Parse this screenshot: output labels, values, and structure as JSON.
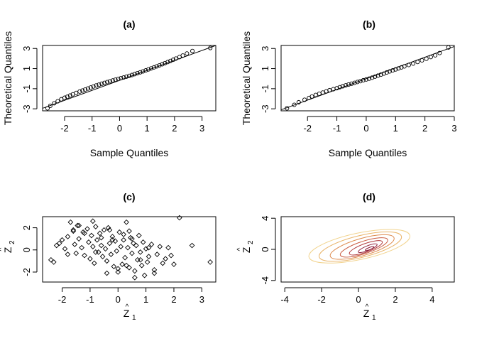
{
  "colors": {
    "points": "#000000",
    "contour_scale": [
      "#f2d48f",
      "#e9b46a",
      "#dd8a4d",
      "#c95a3f",
      "#b03a3b",
      "#8f1f3a"
    ]
  },
  "chart_data": [
    {
      "id": "a",
      "type": "scatter",
      "title": "(a)",
      "xlabel": "Sample Quantiles",
      "ylabel": "Theoretical Quantiles",
      "xlim": [
        -2.8,
        3.5
      ],
      "ylim": [
        -3.2,
        3.3
      ],
      "xticks": [
        -2,
        -1,
        0,
        1,
        2,
        3
      ],
      "xticklabels": [
        "-2",
        "-1",
        "0",
        "1",
        "2",
        "3"
      ],
      "yticks": [
        -3,
        -1,
        1,
        3
      ],
      "yticklabels": [
        "-3",
        "-1",
        "1",
        "3"
      ],
      "marker": "circle-open",
      "reference_line": {
        "x": [
          -2.8,
          3.5
        ],
        "y": [
          -2.95,
          3.3
        ]
      },
      "points": {
        "x": [
          -2.62,
          -2.52,
          -2.38,
          -2.25,
          -2.12,
          -2.0,
          -1.9,
          -1.8,
          -1.7,
          -1.58,
          -1.45,
          -1.35,
          -1.25,
          -1.15,
          -1.05,
          -0.95,
          -0.85,
          -0.75,
          -0.65,
          -0.55,
          -0.45,
          -0.35,
          -0.25,
          -0.15,
          -0.05,
          0.05,
          0.15,
          0.25,
          0.35,
          0.45,
          0.55,
          0.65,
          0.75,
          0.85,
          0.95,
          1.05,
          1.15,
          1.25,
          1.35,
          1.45,
          1.55,
          1.65,
          1.75,
          1.85,
          1.95,
          2.05,
          2.18,
          2.3,
          2.45,
          2.65,
          3.3
        ],
        "y": [
          -2.95,
          -2.7,
          -2.45,
          -2.25,
          -2.05,
          -1.9,
          -1.8,
          -1.68,
          -1.56,
          -1.42,
          -1.28,
          -1.18,
          -1.08,
          -0.98,
          -0.88,
          -0.78,
          -0.68,
          -0.6,
          -0.5,
          -0.42,
          -0.34,
          -0.26,
          -0.18,
          -0.1,
          -0.03,
          0.05,
          0.12,
          0.2,
          0.28,
          0.36,
          0.45,
          0.54,
          0.63,
          0.72,
          0.82,
          0.92,
          1.02,
          1.12,
          1.22,
          1.32,
          1.43,
          1.54,
          1.65,
          1.76,
          1.88,
          2.0,
          2.15,
          2.3,
          2.5,
          2.75,
          3.05
        ]
      }
    },
    {
      "id": "b",
      "type": "scatter",
      "title": "(b)",
      "xlabel": "Sample Quantiles",
      "ylabel": "Theoretical Quantiles",
      "xlim": [
        -2.9,
        3.0
      ],
      "ylim": [
        -3.2,
        3.3
      ],
      "xticks": [
        -2,
        -1,
        0,
        1,
        2,
        3
      ],
      "xticklabels": [
        "-2",
        "-1",
        "0",
        "1",
        "2",
        "3"
      ],
      "yticks": [
        -3,
        -1,
        1,
        3
      ],
      "yticklabels": [
        "-3",
        "-1",
        "1",
        "3"
      ],
      "marker": "circle-open",
      "reference_line": {
        "x": [
          -2.9,
          3.0
        ],
        "y": [
          -3.1,
          3.2
        ]
      },
      "points": {
        "x": [
          -2.7,
          -2.45,
          -2.3,
          -2.1,
          -1.95,
          -1.85,
          -1.72,
          -1.6,
          -1.48,
          -1.36,
          -1.25,
          -1.12,
          -1.0,
          -0.9,
          -0.8,
          -0.7,
          -0.6,
          -0.5,
          -0.4,
          -0.3,
          -0.2,
          -0.1,
          0.0,
          0.1,
          0.2,
          0.3,
          0.4,
          0.5,
          0.6,
          0.7,
          0.8,
          0.9,
          1.0,
          1.1,
          1.2,
          1.3,
          1.45,
          1.6,
          1.75,
          1.9,
          2.05,
          2.2,
          2.35,
          2.5,
          2.8
        ],
        "y": [
          -2.95,
          -2.6,
          -2.35,
          -2.1,
          -1.92,
          -1.78,
          -1.62,
          -1.5,
          -1.38,
          -1.26,
          -1.15,
          -1.05,
          -0.95,
          -0.85,
          -0.76,
          -0.67,
          -0.58,
          -0.5,
          -0.42,
          -0.33,
          -0.25,
          -0.16,
          -0.08,
          0.0,
          0.1,
          0.2,
          0.3,
          0.4,
          0.5,
          0.62,
          0.72,
          0.82,
          0.92,
          1.02,
          1.12,
          1.22,
          1.36,
          1.5,
          1.66,
          1.82,
          1.98,
          2.15,
          2.32,
          2.55,
          3.1
        ]
      }
    },
    {
      "id": "c",
      "type": "scatter",
      "title": "(c)",
      "xlabel_base": "Z",
      "xlabel_hat": "^",
      "xlabel_sub": "1",
      "ylabel_base": "Z",
      "ylabel_hat": "^",
      "ylabel_sub": "2",
      "xlim": [
        -2.7,
        3.5
      ],
      "ylim": [
        -2.9,
        3.0
      ],
      "xticks": [
        -2,
        -1,
        0,
        1,
        2,
        3
      ],
      "xticklabels": [
        "-2",
        "-1",
        "0",
        "1",
        "2",
        "3"
      ],
      "yticks": [
        -2,
        0,
        2
      ],
      "yticklabels": [
        "-2",
        "0",
        "2"
      ],
      "marker": "diamond-open",
      "points": {
        "x": [
          -2.4,
          -2.3,
          -2.2,
          -2.1,
          -2.0,
          -1.9,
          -1.8,
          -1.7,
          -1.6,
          -1.55,
          -1.5,
          -1.45,
          -1.4,
          -1.3,
          -1.25,
          -1.2,
          -1.1,
          -1.05,
          -1.0,
          -0.95,
          -0.9,
          -0.85,
          -0.8,
          -0.75,
          -0.7,
          -0.65,
          -0.6,
          -0.55,
          -0.5,
          -0.45,
          -0.4,
          -0.35,
          -0.3,
          -0.25,
          -0.2,
          -0.15,
          -0.1,
          -0.05,
          0.0,
          0.05,
          0.1,
          0.15,
          0.2,
          0.25,
          0.3,
          0.35,
          0.4,
          0.45,
          0.5,
          0.55,
          0.6,
          0.65,
          0.7,
          0.75,
          0.8,
          0.85,
          0.9,
          0.95,
          1.0,
          1.05,
          1.1,
          1.2,
          1.3,
          1.4,
          1.5,
          1.6,
          1.7,
          1.8,
          1.9,
          2.0,
          2.2,
          2.65,
          3.3,
          -1.6,
          -1.4,
          -1.2,
          -0.9,
          -0.6,
          -0.3,
          0.2,
          0.5,
          0.8,
          1.1,
          -0.4,
          0.0,
          0.3,
          -1.8,
          -0.8,
          0.6,
          1.3,
          -0.2,
          0.4
        ],
        "y": [
          -0.9,
          -1.1,
          0.4,
          0.6,
          0.9,
          0.1,
          1.2,
          2.5,
          1.8,
          0.5,
          -0.3,
          2.2,
          1.0,
          0.2,
          1.6,
          -0.5,
          1.9,
          0.7,
          -0.8,
          1.3,
          0.3,
          -1.2,
          2.1,
          0.9,
          -0.2,
          1.5,
          0.4,
          -0.6,
          1.8,
          0.1,
          -1.0,
          2.0,
          0.6,
          -0.4,
          1.2,
          -1.5,
          0.8,
          -0.1,
          -2.0,
          1.6,
          0.3,
          -1.3,
          0.9,
          -0.7,
          2.5,
          0.2,
          -1.6,
          1.1,
          -0.3,
          0.6,
          -1.9,
          0.4,
          -0.9,
          1.3,
          -0.2,
          -1.4,
          0.7,
          -2.3,
          0.1,
          -1.1,
          -0.6,
          0.5,
          -1.8,
          -0.4,
          0.3,
          -1.2,
          -0.8,
          0.2,
          -0.5,
          -1.3,
          2.9,
          0.4,
          -1.1,
          1.7,
          2.2,
          1.5,
          2.6,
          1.1,
          1.8,
          1.4,
          1.0,
          -0.9,
          0.2,
          -2.1,
          -1.7,
          -1.4,
          -0.4,
          -0.2,
          -2.5,
          -2.1,
          0.9,
          1.7
        ]
      }
    },
    {
      "id": "d",
      "type": "contour",
      "title": "(d)",
      "xlabel_base": "Z",
      "xlabel_hat": "^",
      "xlabel_sub": "1",
      "ylabel_base": "Z",
      "ylabel_hat": "^",
      "ylabel_sub": "2",
      "xlim": [
        -4.2,
        5.2
      ],
      "ylim": [
        -4.2,
        4.2
      ],
      "xticks": [
        -4,
        -2,
        0,
        2,
        4
      ],
      "xticklabels": [
        "-4",
        "-2",
        "0",
        "2",
        "4"
      ],
      "yticks": [
        -4,
        0,
        4
      ],
      "yticklabels": [
        "-4",
        "0",
        "4"
      ],
      "contours": [
        {
          "cx": 0.05,
          "cy": 0.4,
          "rx": 2.8,
          "ry": 1.7,
          "rot": -12,
          "level": 0
        },
        {
          "cx": 0.1,
          "cy": 0.35,
          "rx": 2.3,
          "ry": 1.4,
          "rot": -14,
          "level": 1
        },
        {
          "cx": 0.2,
          "cy": 0.3,
          "rx": 1.8,
          "ry": 1.1,
          "rot": -16,
          "level": 2
        },
        {
          "cx": 0.3,
          "cy": 0.25,
          "rx": 1.35,
          "ry": 0.8,
          "rot": -18,
          "level": 3
        },
        {
          "cx": 0.4,
          "cy": 0.2,
          "rx": 0.95,
          "ry": 0.55,
          "rot": -20,
          "level": 4
        },
        {
          "cx": 0.5,
          "cy": 0.15,
          "rx": 0.55,
          "ry": 0.3,
          "rot": -22,
          "level": 5
        },
        {
          "cx": 0.6,
          "cy": 0.1,
          "rx": 0.25,
          "ry": 0.14,
          "rot": -22,
          "level": 5
        }
      ]
    }
  ]
}
